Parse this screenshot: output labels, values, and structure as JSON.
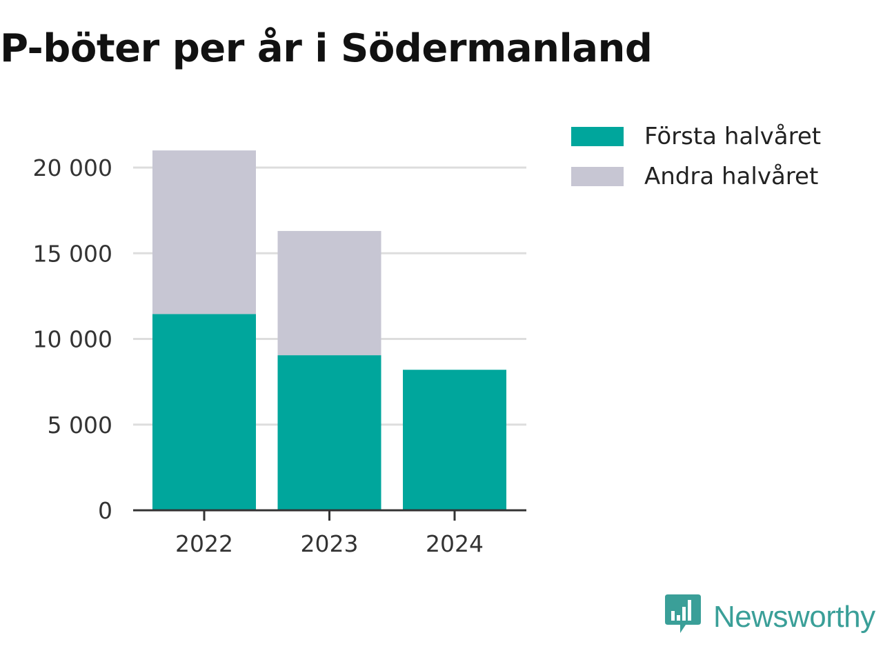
{
  "colors": {
    "first_half": "#00a69c",
    "second_half": "#c7c6d3",
    "brand": "#3a9f98",
    "grid": "#dddddd",
    "axis": "#333333"
  },
  "chart_data": {
    "type": "bar",
    "stacked": true,
    "title": "P-böter per år i Södermanland",
    "xlabel": "",
    "ylabel": "",
    "categories": [
      "2022",
      "2023",
      "2024"
    ],
    "series": [
      {
        "name": "Första halvåret",
        "values": [
          11450,
          9050,
          8200
        ]
      },
      {
        "name": "Andra halvåret",
        "values": [
          9550,
          7250,
          0
        ]
      }
    ],
    "ylim": [
      0,
      20000
    ],
    "yticks": [
      0,
      5000,
      10000,
      15000,
      20000
    ],
    "ytick_labels": [
      "0",
      "5 000",
      "10 000",
      "15 000",
      "20 000"
    ],
    "grid": true,
    "legend_position": "top-right"
  },
  "legend": {
    "items": [
      {
        "label": "Första halvåret",
        "color": "#00a69c"
      },
      {
        "label": "Andra halvåret",
        "color": "#c7c6d3"
      }
    ]
  },
  "brand": {
    "name": "Newsworthy",
    "icon": "newsworthy-logo-icon"
  }
}
